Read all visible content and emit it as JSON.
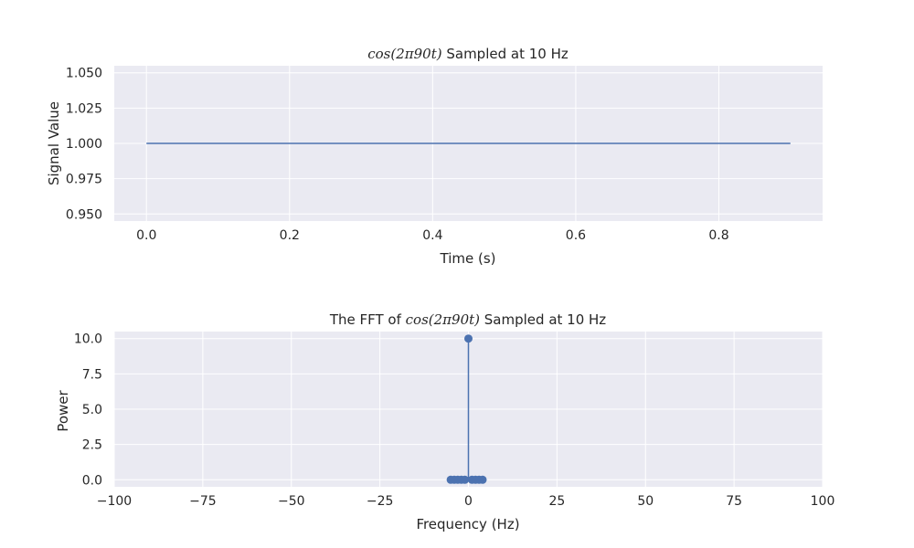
{
  "chart_data": [
    {
      "type": "line",
      "title_prefix": "",
      "title_math": "cos(2π90t)",
      "title_suffix": " Sampled at 10 Hz",
      "xlabel": "Time (s)",
      "ylabel": "Signal Value",
      "xlim": [
        -0.045,
        0.945
      ],
      "ylim": [
        0.945,
        1.055
      ],
      "xticks": [
        0.0,
        0.2,
        0.4,
        0.6,
        0.8
      ],
      "xtick_labels": [
        "0.0",
        "0.2",
        "0.4",
        "0.6",
        "0.8"
      ],
      "yticks": [
        0.95,
        0.975,
        1.0,
        1.025,
        1.05
      ],
      "ytick_labels": [
        "0.950",
        "0.975",
        "1.000",
        "1.025",
        "1.050"
      ],
      "x": [
        0.0,
        0.1,
        0.2,
        0.3,
        0.4,
        0.5,
        0.6,
        0.7,
        0.8,
        0.9
      ],
      "y": [
        1.0,
        1.0,
        1.0,
        1.0,
        1.0,
        1.0,
        1.0,
        1.0,
        1.0,
        1.0
      ],
      "grid": true,
      "color": "#4c72b0"
    },
    {
      "type": "stem",
      "title_prefix": "The FFT of ",
      "title_math": "cos(2π90t)",
      "title_suffix": " Sampled at 10 Hz",
      "xlabel": "Frequency (Hz)",
      "ylabel": "Power",
      "xlim": [
        -100,
        100
      ],
      "ylim": [
        -0.5,
        10.5
      ],
      "xticks": [
        -100,
        -75,
        -50,
        -25,
        0,
        25,
        50,
        75,
        100
      ],
      "xtick_labels": [
        "−100",
        "−75",
        "−50",
        "−25",
        "0",
        "25",
        "50",
        "75",
        "100"
      ],
      "yticks": [
        0,
        2.5,
        5,
        7.5,
        10
      ],
      "ytick_labels": [
        "0.0",
        "2.5",
        "5.0",
        "7.5",
        "10.0"
      ],
      "x": [
        -5,
        -4,
        -3,
        -2,
        -1,
        0,
        1,
        2,
        3,
        4
      ],
      "y": [
        0,
        0,
        0,
        0,
        0,
        10,
        0,
        0,
        0,
        0
      ],
      "grid": true,
      "color": "#4c72b0",
      "baseline_color": "#c44e52"
    }
  ]
}
